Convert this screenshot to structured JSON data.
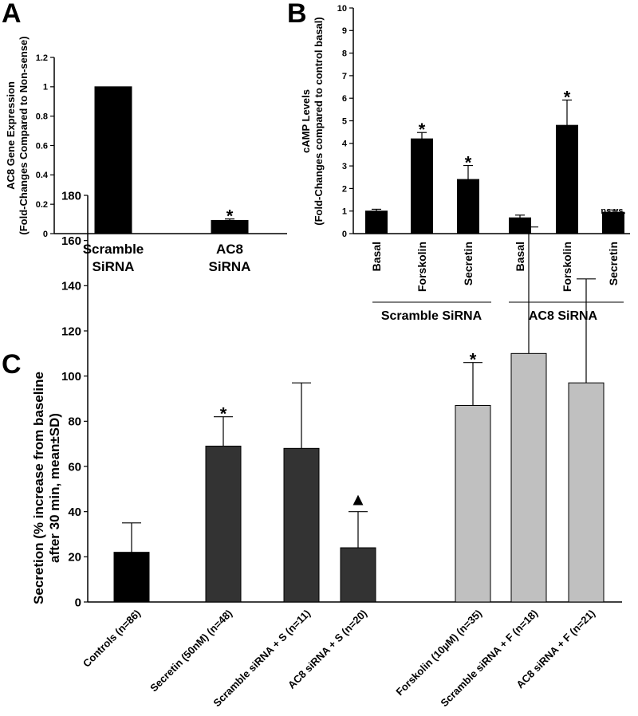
{
  "panels": {
    "A": {
      "letter": "A"
    },
    "B": {
      "letter": "B"
    },
    "C": {
      "letter": "C"
    }
  },
  "chart_data": [
    {
      "id": "A",
      "type": "bar",
      "title": "",
      "ylabel_line1": "AC8 Gene Expression",
      "ylabel_line2": "(Fold-Changes Compared to Non-sense)",
      "ylim": [
        0,
        1.2
      ],
      "yticks": [
        "0",
        "0.2",
        "0.4",
        "0.6",
        "0.8",
        "1",
        "1.2"
      ],
      "categories": [
        {
          "line1": "Scramble",
          "line2": "SiRNA"
        },
        {
          "line1": "AC8",
          "line2": "SiRNA"
        }
      ],
      "values": [
        1.0,
        0.09
      ],
      "errors": [
        0,
        0.01
      ],
      "annotations": [
        "",
        "*"
      ],
      "bar_color": "#000000",
      "grid": false
    },
    {
      "id": "B",
      "type": "bar",
      "title": "",
      "ylabel_line1": "cAMP Levels",
      "ylabel_line2": "(Fold-Changes compared to control basal)",
      "ylim": [
        0,
        10
      ],
      "yticks": [
        "0",
        "1",
        "2",
        "3",
        "4",
        "5",
        "6",
        "7",
        "8",
        "9",
        "10"
      ],
      "categories": [
        "Basal",
        "Forskolin",
        "Secretin",
        "Basal",
        "Forskolin",
        "Secretin"
      ],
      "values": [
        1.0,
        4.2,
        2.4,
        0.7,
        4.8,
        0.95
      ],
      "errors": [
        0.08,
        0.28,
        0.62,
        0.12,
        1.12,
        0.1
      ],
      "annotations": [
        "",
        "*",
        "*",
        "",
        "*",
        ""
      ],
      "ns_note_line1": "ns vs.",
      "ns_note_line2": "basal",
      "groups": [
        {
          "label": "Scramble SiRNA",
          "from": 0,
          "to": 2
        },
        {
          "label": "AC8 SiRNA",
          "from": 3,
          "to": 5
        }
      ],
      "bar_color": "#000000",
      "grid": false
    },
    {
      "id": "C",
      "type": "bar",
      "title": "",
      "ylabel_line1": "Secretion (% increase from baseline",
      "ylabel_line2": "after 30 min, mean±SD)",
      "ylim": [
        0,
        180
      ],
      "yticks": [
        "0",
        "20",
        "40",
        "60",
        "80",
        "100",
        "120",
        "140",
        "160",
        "180"
      ],
      "categories": [
        "Controls (n=86)",
        "Secretin (50nM) (n=48)",
        "Scramble siRNA + S (n=11)",
        "AC8 siRNA + S (n=20)",
        "Forskolin (10µM) (n=35)",
        "Scramble siRNA + F (n=18)",
        "AC8 siRNA + F (n=21)"
      ],
      "values": [
        22,
        69,
        68,
        24,
        87,
        110,
        97
      ],
      "errors": [
        13,
        13,
        29,
        16,
        19,
        56,
        46
      ],
      "annotations": [
        "",
        "*",
        "",
        "▲",
        "*",
        "",
        ""
      ],
      "bar_colors": [
        "#000000",
        "#333333",
        "#333333",
        "#333333",
        "#c0c0c0",
        "#c0c0c0",
        "#c0c0c0"
      ],
      "grid": false
    }
  ]
}
